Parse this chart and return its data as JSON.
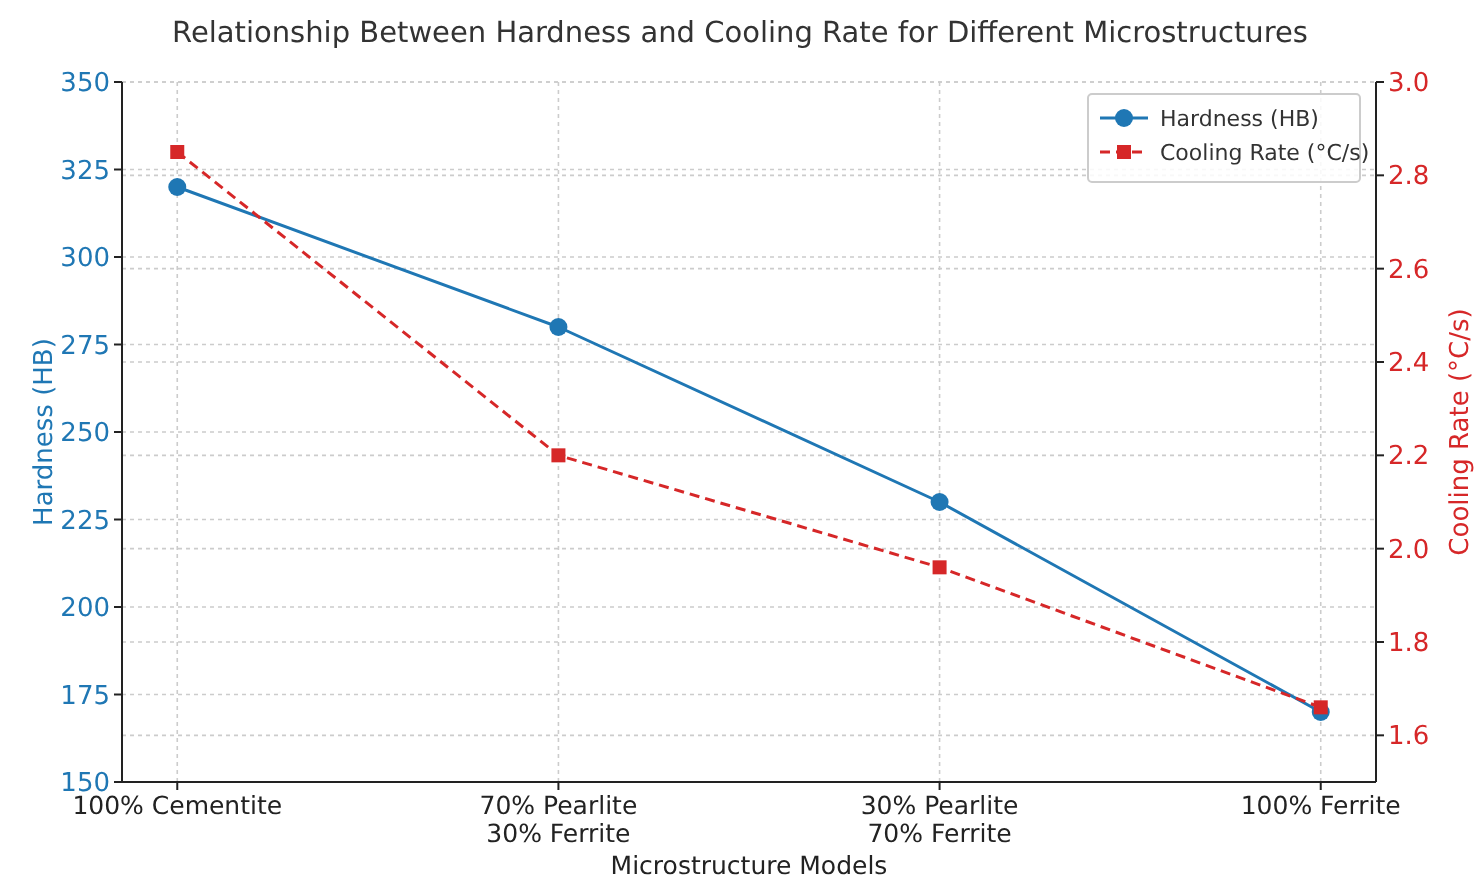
{
  "chart_data": {
    "type": "line",
    "title": "Relationship Between Hardness and Cooling Rate for Different Microstructures",
    "xlabel": "Microstructure Models",
    "ylabel": "Hardness (HB)",
    "y2label": "Cooling Rate (°C/s)",
    "categories": [
      "100% Cementite",
      "70% Pearlite\n30% Ferrite",
      "30% Pearlite\n70% Ferrite",
      "100% Ferrite"
    ],
    "series": [
      {
        "name": "Hardness (HB)",
        "color": "#1f77b4",
        "values": [
          320,
          280,
          230,
          170
        ],
        "marker": "circle",
        "line_style": "solid"
      },
      {
        "name": "Cooling Rate (°C/s)",
        "color": "#d62728",
        "values": [
          2.85,
          2.2,
          1.96,
          1.66
        ],
        "marker": "square",
        "line_style": "dashed",
        "axis": "y2"
      }
    ],
    "ylim": [
      150,
      350
    ],
    "yticks": [
      150,
      175,
      200,
      225,
      250,
      275,
      300,
      325,
      350
    ],
    "y2lim": [
      1.5,
      3.0
    ],
    "y2ticks": [
      1.6,
      1.8,
      {
        "value": 2,
        "label": "2.0"
      },
      2.2,
      2.4,
      2.6,
      2.8,
      {
        "value": 3,
        "label": "3.0"
      }
    ],
    "grid": true,
    "legend": "top right"
  }
}
